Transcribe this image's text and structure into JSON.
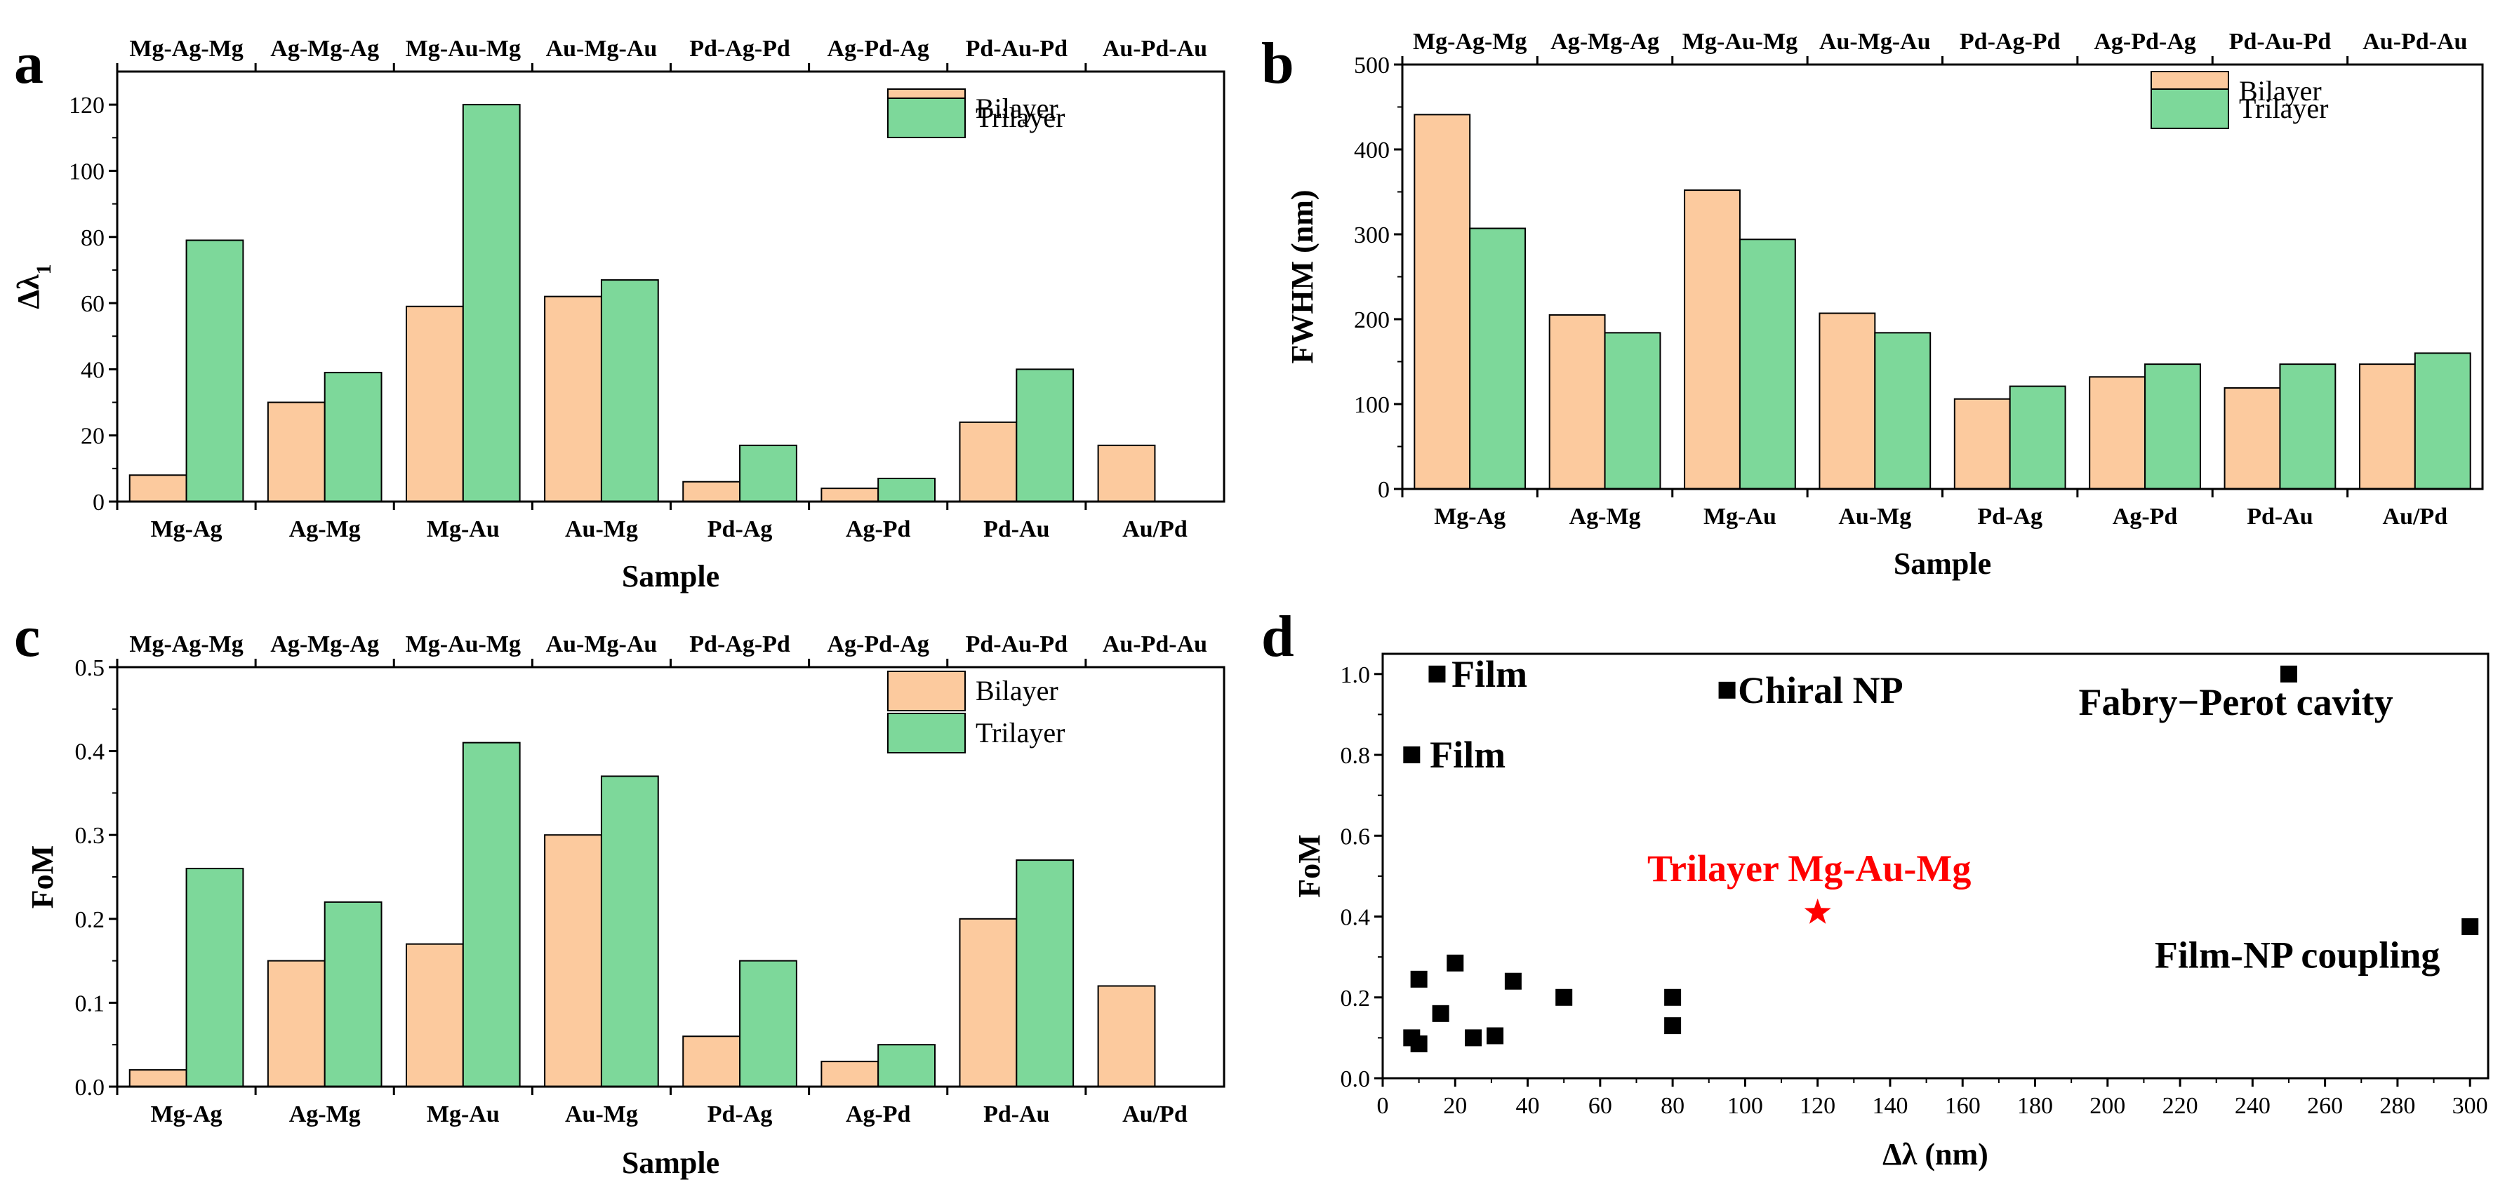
{
  "chart_data": [
    {
      "panel": "a",
      "type": "bar",
      "categories": [
        "Mg-Ag",
        "Ag-Mg",
        "Mg-Au",
        "Au-Mg",
        "Pd-Ag",
        "Ag-Pd",
        "Pd-Au",
        "Au/Pd"
      ],
      "top_categories": [
        "Mg-Ag-Mg",
        "Ag-Mg-Ag",
        "Mg-Au-Mg",
        "Au-Mg-Au",
        "Pd-Ag-Pd",
        "Ag-Pd-Ag",
        "Pd-Au-Pd",
        "Au-Pd-Au"
      ],
      "series": [
        {
          "name": "Bilayer",
          "color": "#FCCA9E",
          "values": [
            8,
            30,
            59,
            62,
            6,
            4,
            24,
            17
          ]
        },
        {
          "name": "Trilayer",
          "color": "#7DD89A",
          "values": [
            79,
            39,
            120,
            67,
            17,
            7,
            40,
            null
          ]
        }
      ],
      "xlabel": "Sample",
      "ylabel": "Δλ",
      "ylabel_sub": "1",
      "ylim": [
        0,
        130
      ],
      "yticks": [
        0,
        20,
        40,
        60,
        80,
        100,
        120
      ],
      "ytick_labels": [
        "0",
        "20",
        "40",
        "60",
        "80",
        "100",
        "120"
      ],
      "legend": "top-right"
    },
    {
      "panel": "b",
      "type": "bar",
      "categories": [
        "Mg-Ag",
        "Ag-Mg",
        "Mg-Au",
        "Au-Mg",
        "Pd-Ag",
        "Ag-Pd",
        "Pd-Au",
        "Au/Pd"
      ],
      "top_categories": [
        "Mg-Ag-Mg",
        "Ag-Mg-Ag",
        "Mg-Au-Mg",
        "Au-Mg-Au",
        "Pd-Ag-Pd",
        "Ag-Pd-Ag",
        "Pd-Au-Pd",
        "Au-Pd-Au"
      ],
      "series": [
        {
          "name": "Bilayer",
          "color": "#FCCA9E",
          "values": [
            441,
            205,
            352,
            207,
            106,
            132,
            119,
            147
          ]
        },
        {
          "name": "Trilayer",
          "color": "#7DD89A",
          "values": [
            307,
            184,
            294,
            184,
            121,
            147,
            147,
            160
          ]
        }
      ],
      "xlabel": "Sample",
      "ylabel": "FWHM (nm)",
      "ylim": [
        0,
        500
      ],
      "yticks": [
        0,
        100,
        200,
        300,
        400,
        500
      ],
      "ytick_labels": [
        "0",
        "100",
        "200",
        "300",
        "400",
        "500"
      ],
      "legend": "top-right"
    },
    {
      "panel": "c",
      "type": "bar",
      "categories": [
        "Mg-Ag",
        "Ag-Mg",
        "Mg-Au",
        "Au-Mg",
        "Pd-Ag",
        "Ag-Pd",
        "Pd-Au",
        "Au/Pd"
      ],
      "top_categories": [
        "Mg-Ag-Mg",
        "Ag-Mg-Ag",
        "Mg-Au-Mg",
        "Au-Mg-Au",
        "Pd-Ag-Pd",
        "Ag-Pd-Ag",
        "Pd-Au-Pd",
        "Au-Pd-Au"
      ],
      "series": [
        {
          "name": "Bilayer",
          "color": "#FCCA9E",
          "values": [
            0.02,
            0.15,
            0.17,
            0.3,
            0.06,
            0.03,
            0.2,
            0.12
          ]
        },
        {
          "name": "Trilayer",
          "color": "#7DD89A",
          "values": [
            0.26,
            0.22,
            0.41,
            0.37,
            0.15,
            0.05,
            0.27,
            null
          ]
        }
      ],
      "xlabel": "Sample",
      "ylabel": "FoM",
      "ylim": [
        0,
        0.5
      ],
      "yticks": [
        0,
        0.1,
        0.2,
        0.3,
        0.4,
        0.5
      ],
      "ytick_labels": [
        "0.0",
        "0.1",
        "0.2",
        "0.3",
        "0.4",
        "0.5"
      ],
      "legend": "top-right"
    },
    {
      "panel": "d",
      "type": "scatter",
      "xlabel": "Δλ (nm)",
      "ylabel": "FoM",
      "xlim": [
        0,
        305
      ],
      "ylim": [
        0,
        1.05
      ],
      "xticks": [
        0,
        20,
        40,
        60,
        80,
        100,
        120,
        140,
        160,
        180,
        200,
        220,
        240,
        260,
        280,
        300
      ],
      "xtick_labels": [
        "0",
        "20",
        "40",
        "60",
        "80",
        "100",
        "120",
        "140",
        "160",
        "180",
        "200",
        "220",
        "240",
        "260",
        "280",
        "300"
      ],
      "yticks": [
        0,
        0.2,
        0.4,
        0.6,
        0.8,
        1.0
      ],
      "ytick_labels": [
        "0.0",
        "0.2",
        "0.4",
        "0.6",
        "0.8",
        "1.0"
      ],
      "points": [
        {
          "x": 15,
          "y": 1.0
        },
        {
          "x": 8,
          "y": 0.8
        },
        {
          "x": 95,
          "y": 0.96
        },
        {
          "x": 250,
          "y": 1.0
        },
        {
          "x": 300,
          "y": 0.375
        },
        {
          "x": 10,
          "y": 0.245
        },
        {
          "x": 20,
          "y": 0.285
        },
        {
          "x": 36,
          "y": 0.24
        },
        {
          "x": 50,
          "y": 0.2
        },
        {
          "x": 80,
          "y": 0.2
        },
        {
          "x": 80,
          "y": 0.13
        },
        {
          "x": 16,
          "y": 0.16
        },
        {
          "x": 8,
          "y": 0.1
        },
        {
          "x": 10,
          "y": 0.085
        },
        {
          "x": 25,
          "y": 0.1
        },
        {
          "x": 31,
          "y": 0.105
        }
      ],
      "highlight": {
        "x": 120,
        "y": 0.41,
        "label": "Trilayer Mg-Au-Mg",
        "color": "#FF0000"
      },
      "annotations": [
        {
          "text": "Film",
          "x": 19,
          "y": 1.0
        },
        {
          "text": "Film",
          "x": 13,
          "y": 0.8
        },
        {
          "text": "Chiral NP",
          "x": 98,
          "y": 0.96
        },
        {
          "text": "Fabry−Perot cavity",
          "x": 192,
          "y": 0.93
        },
        {
          "text": "Film-NP coupling",
          "x": 213,
          "y": 0.305
        }
      ]
    }
  ]
}
